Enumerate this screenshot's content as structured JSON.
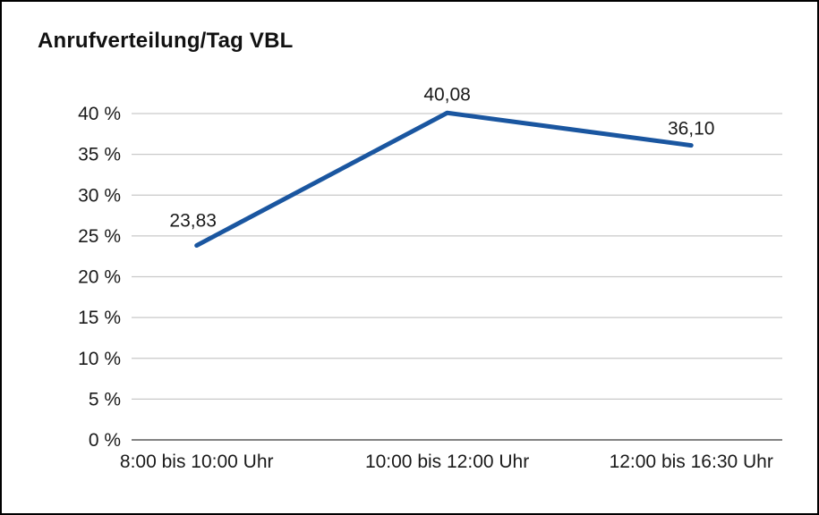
{
  "chart": {
    "title": "Anrufverteilung/Tag VBL"
  },
  "chart_data": {
    "type": "line",
    "title": "Anrufverteilung/Tag VBL",
    "categories": [
      "8:00 bis 10:00 Uhr",
      "10:00 bis 12:00 Uhr",
      "12:00 bis 16:30 Uhr"
    ],
    "values": [
      23.83,
      40.08,
      36.1
    ],
    "data_labels": [
      "23,83",
      "40,08",
      "36,10"
    ],
    "xlabel": "",
    "ylabel": "",
    "ylim": [
      0,
      40
    ],
    "ytick_step": 5,
    "ytick_labels": [
      "0 %",
      "5 %",
      "10 %",
      "15 %",
      "20 %",
      "25 %",
      "30 %",
      "35 %",
      "40 %"
    ],
    "grid": true,
    "legend": "none",
    "line_color": "#1A56A0",
    "grid_color": "#C9C9C9",
    "axis_color": "#595959",
    "text_color": "#1a1a1a"
  }
}
